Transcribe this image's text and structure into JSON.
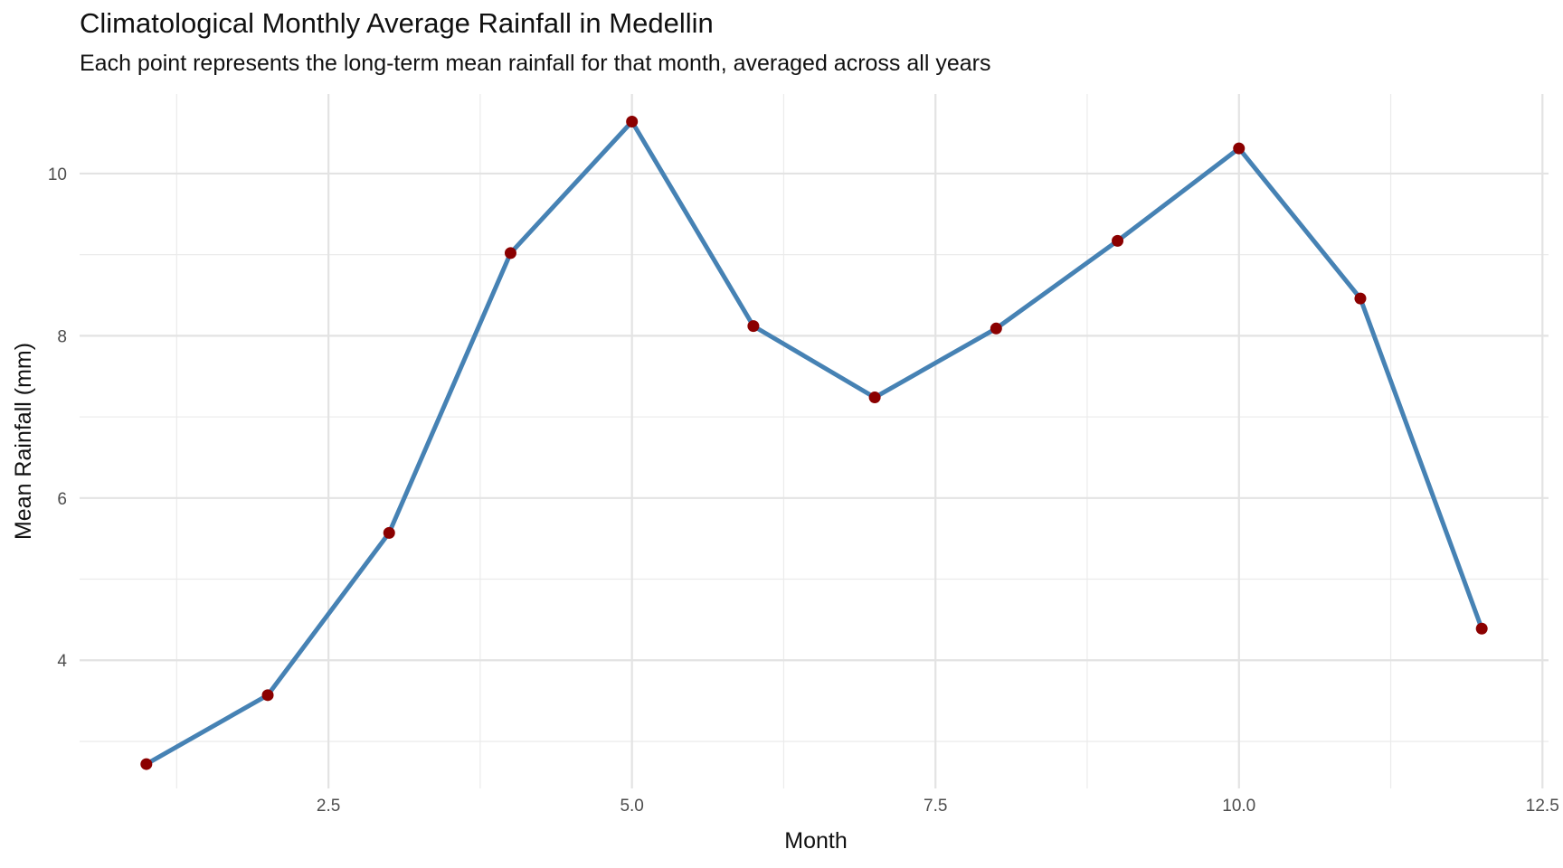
{
  "chart_data": {
    "type": "line",
    "title": "Climatological Monthly Average Rainfall in Medellin",
    "subtitle": "Each point represents the long-term mean rainfall for that month, averaged across all years",
    "xlabel": "Month",
    "ylabel": "Mean Rainfall (mm)",
    "xlim": [
      0.45,
      12.55
    ],
    "ylim": [
      2.42,
      10.98
    ],
    "x_ticks": [
      2.5,
      5.0,
      7.5,
      10.0,
      12.5
    ],
    "x_tick_labels": [
      "2.5",
      "5.0",
      "7.5",
      "10.0",
      "12.5"
    ],
    "y_ticks": [
      4,
      6,
      8,
      10
    ],
    "y_tick_labels": [
      "4",
      "6",
      "8",
      "10"
    ],
    "grid": true,
    "series": [
      {
        "x": [
          1,
          2,
          3,
          4,
          5,
          6,
          7,
          8,
          9,
          10,
          11,
          12
        ],
        "values": [
          2.72,
          3.57,
          5.57,
          9.02,
          10.64,
          8.12,
          7.24,
          8.09,
          9.17,
          10.31,
          8.46,
          4.39
        ],
        "line_color": "#4682b4",
        "point_color": "#8b0000"
      }
    ]
  }
}
